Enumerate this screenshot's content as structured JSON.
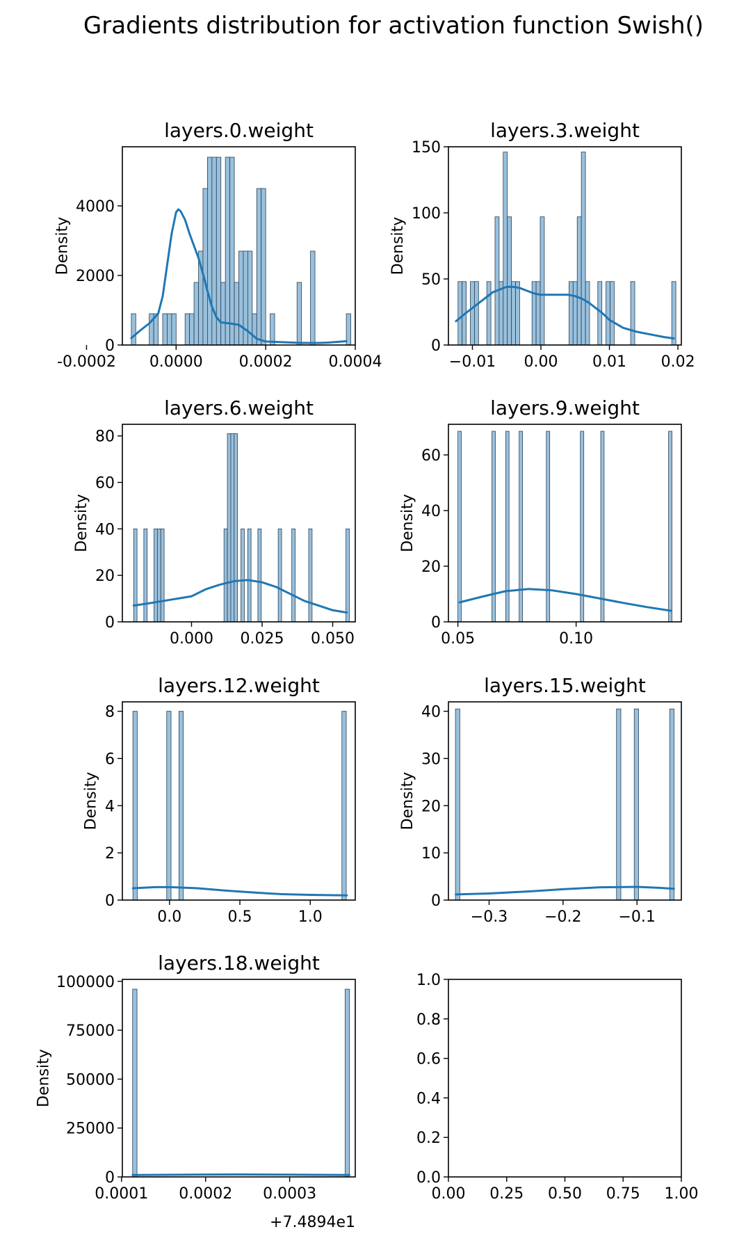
{
  "figure": {
    "suptitle": "Gradients distribution for activation function Swish()"
  },
  "style": {
    "bar_fill": "#99c0dc",
    "bar_edge": "#2b3f52",
    "kde_color": "#1f77b4",
    "axes_color": "#000000"
  },
  "chart_data": [
    {
      "type": "histogram",
      "title": "layers.0.weight",
      "ylabel": "Density",
      "xlabel": "",
      "xlim": [
        -0.00012,
        0.0004
      ],
      "ylim": [
        0,
        5700
      ],
      "xticks": [
        {
          "v": -0.0002,
          "label": "-0.0002"
        },
        {
          "v": 0.0,
          "label": "0.0000"
        },
        {
          "v": 0.0002,
          "label": "0.0002"
        },
        {
          "v": 0.0004,
          "label": "0.0004"
        }
      ],
      "yticks": [
        {
          "v": 0,
          "label": "0"
        },
        {
          "v": 2000,
          "label": "2000"
        },
        {
          "v": 4000,
          "label": "4000"
        }
      ],
      "bins": [
        -0.0001,
        -9e-05,
        -8e-05,
        -7e-05,
        -6e-05,
        -5e-05,
        -4e-05,
        -3e-05,
        -2e-05,
        -1e-05,
        0.0,
        1e-05,
        2e-05,
        3e-05,
        4e-05,
        5e-05,
        6e-05,
        7e-05,
        8e-05,
        9e-05,
        0.0001,
        0.00011,
        0.00012,
        0.00013,
        0.00014,
        0.00015,
        0.00016,
        0.00017,
        0.00018,
        0.00019,
        0.0002,
        0.00021,
        0.00022,
        0.00023,
        0.00024,
        0.00025,
        0.00026,
        0.00027,
        0.00028,
        0.00029,
        0.0003,
        0.00031,
        0.00032,
        0.00033,
        0.00034,
        0.00035,
        0.00036,
        0.00037,
        0.00038
      ],
      "densities": [
        900,
        0,
        0,
        0,
        900,
        900,
        0,
        900,
        900,
        900,
        0,
        0,
        900,
        900,
        1800,
        2700,
        4500,
        5400,
        5400,
        5400,
        1800,
        5400,
        5400,
        1800,
        2700,
        2700,
        2700,
        900,
        4500,
        4500,
        0,
        900,
        0,
        0,
        0,
        0,
        0,
        1800,
        0,
        0,
        2700,
        0,
        0,
        0,
        0,
        0,
        0,
        0,
        900
      ],
      "kde": [
        [
          -0.0001,
          200
        ],
        [
          -8e-05,
          420
        ],
        [
          -6e-05,
          620
        ],
        [
          -4e-05,
          900
        ],
        [
          -3e-05,
          1400
        ],
        [
          -2e-05,
          2300
        ],
        [
          -1e-05,
          3200
        ],
        [
          0.0,
          3820
        ],
        [
          5e-06,
          3900
        ],
        [
          1e-05,
          3850
        ],
        [
          2e-05,
          3600
        ],
        [
          3e-05,
          3200
        ],
        [
          4e-05,
          2850
        ],
        [
          5e-05,
          2500
        ],
        [
          6e-05,
          2050
        ],
        [
          7e-05,
          1550
        ],
        [
          8e-05,
          1100
        ],
        [
          9e-05,
          800
        ],
        [
          0.0001,
          650
        ],
        [
          0.00012,
          620
        ],
        [
          0.00014,
          580
        ],
        [
          0.00016,
          400
        ],
        [
          0.00018,
          180
        ],
        [
          0.0002,
          100
        ],
        [
          0.00022,
          90
        ],
        [
          0.00024,
          80
        ],
        [
          0.00026,
          70
        ],
        [
          0.00028,
          60
        ],
        [
          0.0003,
          60
        ],
        [
          0.00032,
          60
        ],
        [
          0.00034,
          70
        ],
        [
          0.00036,
          90
        ],
        [
          0.00038,
          110
        ]
      ]
    },
    {
      "type": "histogram",
      "title": "layers.3.weight",
      "ylabel": "Density",
      "xlabel": "",
      "xlim": [
        -0.0135,
        0.0205
      ],
      "ylim": [
        0,
        150
      ],
      "xticks": [
        {
          "v": -0.01,
          "label": "−0.01"
        },
        {
          "v": 0.0,
          "label": "0.00"
        },
        {
          "v": 0.01,
          "label": "0.01"
        },
        {
          "v": 0.02,
          "label": "0.02"
        }
      ],
      "yticks": [
        {
          "v": 0,
          "label": "0"
        },
        {
          "v": 50,
          "label": "50"
        },
        {
          "v": 100,
          "label": "100"
        },
        {
          "v": 150,
          "label": "150"
        }
      ],
      "bins": [
        -0.0121,
        -0.0115,
        -0.0109,
        -0.0103,
        -0.0097,
        -0.0091,
        -0.0085,
        -0.0079,
        -0.0073,
        -0.0067,
        -0.0061,
        -0.0055,
        -0.0049,
        -0.0043,
        -0.0037,
        -0.0031,
        -0.0025,
        -0.0019,
        -0.0013,
        -0.0007,
        -0.0001,
        0.0005,
        0.0011,
        0.0017,
        0.0023,
        0.0029,
        0.0035,
        0.0041,
        0.0047,
        0.0053,
        0.0059,
        0.0065,
        0.0071,
        0.0077,
        0.0083,
        0.0089,
        0.0095,
        0.0101,
        0.0107,
        0.0113,
        0.0119,
        0.0125,
        0.0131,
        0.0137,
        0.0143,
        0.0149,
        0.0155,
        0.0161,
        0.0167,
        0.0173,
        0.0179,
        0.0185,
        0.0191
      ],
      "densities": [
        48,
        48,
        0,
        48,
        48,
        0,
        0,
        48,
        0,
        97,
        48,
        146,
        97,
        48,
        48,
        0,
        0,
        0,
        48,
        48,
        97,
        0,
        0,
        0,
        0,
        0,
        0,
        48,
        48,
        97,
        146,
        48,
        0,
        0,
        48,
        0,
        48,
        48,
        0,
        0,
        0,
        0,
        48,
        0,
        0,
        0,
        0,
        0,
        0,
        0,
        0,
        0,
        48
      ],
      "kde": [
        [
          -0.0124,
          18
        ],
        [
          -0.011,
          24
        ],
        [
          -0.009,
          32
        ],
        [
          -0.007,
          40
        ],
        [
          -0.005,
          44
        ],
        [
          -0.004,
          44
        ],
        [
          -0.003,
          43
        ],
        [
          -0.002,
          41
        ],
        [
          -0.001,
          39
        ],
        [
          0.0,
          38
        ],
        [
          0.002,
          38
        ],
        [
          0.004,
          38
        ],
        [
          0.005,
          37
        ],
        [
          0.006,
          35
        ],
        [
          0.007,
          32
        ],
        [
          0.008,
          28
        ],
        [
          0.009,
          24
        ],
        [
          0.01,
          19
        ],
        [
          0.011,
          16
        ],
        [
          0.012,
          13
        ],
        [
          0.014,
          10
        ],
        [
          0.016,
          8
        ],
        [
          0.018,
          6
        ],
        [
          0.0194,
          5
        ]
      ]
    },
    {
      "type": "histogram",
      "title": "layers.6.weight",
      "ylabel": "Density",
      "xlabel": "",
      "xlim": [
        -0.0245,
        0.058
      ],
      "ylim": [
        0,
        85
      ],
      "xticks": [
        {
          "v": 0.0,
          "label": "0.000"
        },
        {
          "v": 0.025,
          "label": "0.025"
        },
        {
          "v": 0.05,
          "label": "0.050"
        }
      ],
      "yticks": [
        {
          "v": 0,
          "label": "0"
        },
        {
          "v": 20,
          "label": "20"
        },
        {
          "v": 40,
          "label": "40"
        },
        {
          "v": 60,
          "label": "60"
        },
        {
          "v": 80,
          "label": "80"
        }
      ],
      "bins": [
        -0.0205,
        -0.0193,
        -0.0181,
        -0.0169,
        -0.0157,
        -0.0145,
        -0.0133,
        -0.0121,
        -0.0109,
        -0.0097,
        0.0115,
        0.0127,
        0.0139,
        0.0151,
        0.0163,
        0.0175,
        0.0187,
        0.0199,
        0.0211,
        0.0223,
        0.0235,
        0.0247,
        0.0307,
        0.0355,
        0.0415,
        0.0547
      ],
      "densities": [
        40,
        0,
        0,
        40,
        0,
        0,
        40,
        40,
        40,
        0,
        40,
        81,
        81,
        81,
        0,
        40,
        0,
        40,
        0,
        0,
        40,
        0,
        40,
        40,
        40,
        40
      ],
      "kde": [
        [
          -0.0205,
          7
        ],
        [
          -0.015,
          8
        ],
        [
          -0.01,
          9
        ],
        [
          -0.005,
          10
        ],
        [
          0.0,
          11
        ],
        [
          0.005,
          14
        ],
        [
          0.01,
          16
        ],
        [
          0.015,
          17.5
        ],
        [
          0.02,
          18
        ],
        [
          0.025,
          17
        ],
        [
          0.03,
          15
        ],
        [
          0.035,
          12
        ],
        [
          0.04,
          9
        ],
        [
          0.045,
          7
        ],
        [
          0.05,
          5
        ],
        [
          0.055,
          4
        ]
      ]
    },
    {
      "type": "histogram",
      "title": "layers.9.weight",
      "ylabel": "Density",
      "xlabel": "",
      "xlim": [
        0.046,
        0.1445
      ],
      "ylim": [
        0,
        71
      ],
      "xticks": [
        {
          "v": 0.05,
          "label": "0.05"
        },
        {
          "v": 0.1,
          "label": "0.10"
        }
      ],
      "yticks": [
        {
          "v": 0,
          "label": "0"
        },
        {
          "v": 20,
          "label": "20"
        },
        {
          "v": 40,
          "label": "40"
        },
        {
          "v": 60,
          "label": "60"
        }
      ],
      "bins": [
        0.05,
        0.0644,
        0.0702,
        0.0759,
        0.0874,
        0.1018,
        0.1104,
        0.1391
      ],
      "densities": [
        68.5,
        68.5,
        68.5,
        68.5,
        68.5,
        68.5,
        68.5,
        68.5
      ],
      "bin_width": 0.00144,
      "kde": [
        [
          0.0507,
          7
        ],
        [
          0.06,
          9
        ],
        [
          0.07,
          11
        ],
        [
          0.08,
          11.8
        ],
        [
          0.09,
          11.3
        ],
        [
          0.1,
          10
        ],
        [
          0.11,
          8.4
        ],
        [
          0.12,
          6.8
        ],
        [
          0.13,
          5.3
        ],
        [
          0.14,
          4
        ]
      ]
    },
    {
      "type": "histogram",
      "title": "layers.12.weight",
      "ylabel": "Density",
      "xlabel": "",
      "xlim": [
        -0.335,
        1.32
      ],
      "ylim": [
        0,
        8.4
      ],
      "xticks": [
        {
          "v": 0.0,
          "label": "0.0"
        },
        {
          "v": 0.5,
          "label": "0.5"
        },
        {
          "v": 1.0,
          "label": "1.0"
        }
      ],
      "yticks": [
        {
          "v": 0,
          "label": "0"
        },
        {
          "v": 2,
          "label": "2"
        },
        {
          "v": 4,
          "label": "4"
        },
        {
          "v": 6,
          "label": "6"
        },
        {
          "v": 8,
          "label": "8"
        }
      ],
      "bins": [
        -0.26,
        -0.02,
        0.067,
        1.225
      ],
      "densities": [
        8,
        8,
        8,
        8
      ],
      "bin_width": 0.031,
      "kde": [
        [
          -0.26,
          0.5
        ],
        [
          -0.1,
          0.55
        ],
        [
          0.0,
          0.55
        ],
        [
          0.2,
          0.5
        ],
        [
          0.4,
          0.4
        ],
        [
          0.6,
          0.32
        ],
        [
          0.8,
          0.25
        ],
        [
          1.0,
          0.22
        ],
        [
          1.26,
          0.2
        ]
      ]
    },
    {
      "type": "histogram",
      "title": "layers.15.weight",
      "ylabel": "Density",
      "xlabel": "",
      "xlim": [
        -0.355,
        -0.04
      ],
      "ylim": [
        0,
        42
      ],
      "xticks": [
        {
          "v": -0.3,
          "label": "−0.3"
        },
        {
          "v": -0.2,
          "label": "−0.2"
        },
        {
          "v": -0.1,
          "label": "−0.1"
        }
      ],
      "yticks": [
        {
          "v": 0,
          "label": "0"
        },
        {
          "v": 10,
          "label": "10"
        },
        {
          "v": 20,
          "label": "20"
        },
        {
          "v": 30,
          "label": "30"
        },
        {
          "v": 40,
          "label": "40"
        }
      ],
      "bins": [
        -0.3455,
        -0.1277,
        -0.1037,
        -0.0557
      ],
      "densities": [
        40.5,
        40.5,
        40.5,
        40.5
      ],
      "bin_width": 0.0059,
      "kde": [
        [
          -0.345,
          1.2
        ],
        [
          -0.3,
          1.4
        ],
        [
          -0.25,
          1.8
        ],
        [
          -0.2,
          2.3
        ],
        [
          -0.15,
          2.7
        ],
        [
          -0.1,
          2.8
        ],
        [
          -0.07,
          2.6
        ],
        [
          -0.05,
          2.4
        ]
      ]
    },
    {
      "type": "histogram",
      "title": "layers.18.weight",
      "ylabel": "Density",
      "xlabel": "",
      "offset_label": "+7.4894e1",
      "xlim": [
        0.000101,
        0.000378
      ],
      "ylim": [
        0,
        101000
      ],
      "xticks": [
        {
          "v": 0.0001,
          "label": "0.0001"
        },
        {
          "v": 0.0002,
          "label": "0.0002"
        },
        {
          "v": 0.0003,
          "label": "0.0003"
        }
      ],
      "yticks": [
        {
          "v": 0,
          "label": "0"
        },
        {
          "v": 25000,
          "label": "25000"
        },
        {
          "v": 50000,
          "label": "50000"
        },
        {
          "v": 75000,
          "label": "75000"
        },
        {
          "v": 100000,
          "label": "100000"
        }
      ],
      "bins": [
        0.0001132,
        0.0003659
      ],
      "densities": [
        96000,
        96000
      ],
      "bin_width": 5.2e-06,
      "kde": [
        [
          0.0001132,
          1000
        ],
        [
          0.0002,
          1200
        ],
        [
          0.00024,
          1250
        ],
        [
          0.0003,
          1150
        ],
        [
          0.000371,
          1000
        ]
      ]
    },
    {
      "type": "empty",
      "title": "",
      "ylabel": "",
      "xlabel": "",
      "xlim": [
        0,
        1
      ],
      "ylim": [
        0,
        1
      ],
      "xticks": [
        {
          "v": 0.0,
          "label": "0.00"
        },
        {
          "v": 0.25,
          "label": "0.25"
        },
        {
          "v": 0.5,
          "label": "0.50"
        },
        {
          "v": 0.75,
          "label": "0.75"
        },
        {
          "v": 1.0,
          "label": "1.00"
        }
      ],
      "yticks": [
        {
          "v": 0.0,
          "label": "0.0"
        },
        {
          "v": 0.2,
          "label": "0.2"
        },
        {
          "v": 0.4,
          "label": "0.4"
        },
        {
          "v": 0.6,
          "label": "0.6"
        },
        {
          "v": 0.8,
          "label": "0.8"
        },
        {
          "v": 1.0,
          "label": "1.0"
        }
      ],
      "bins": [],
      "densities": [],
      "kde": []
    }
  ]
}
